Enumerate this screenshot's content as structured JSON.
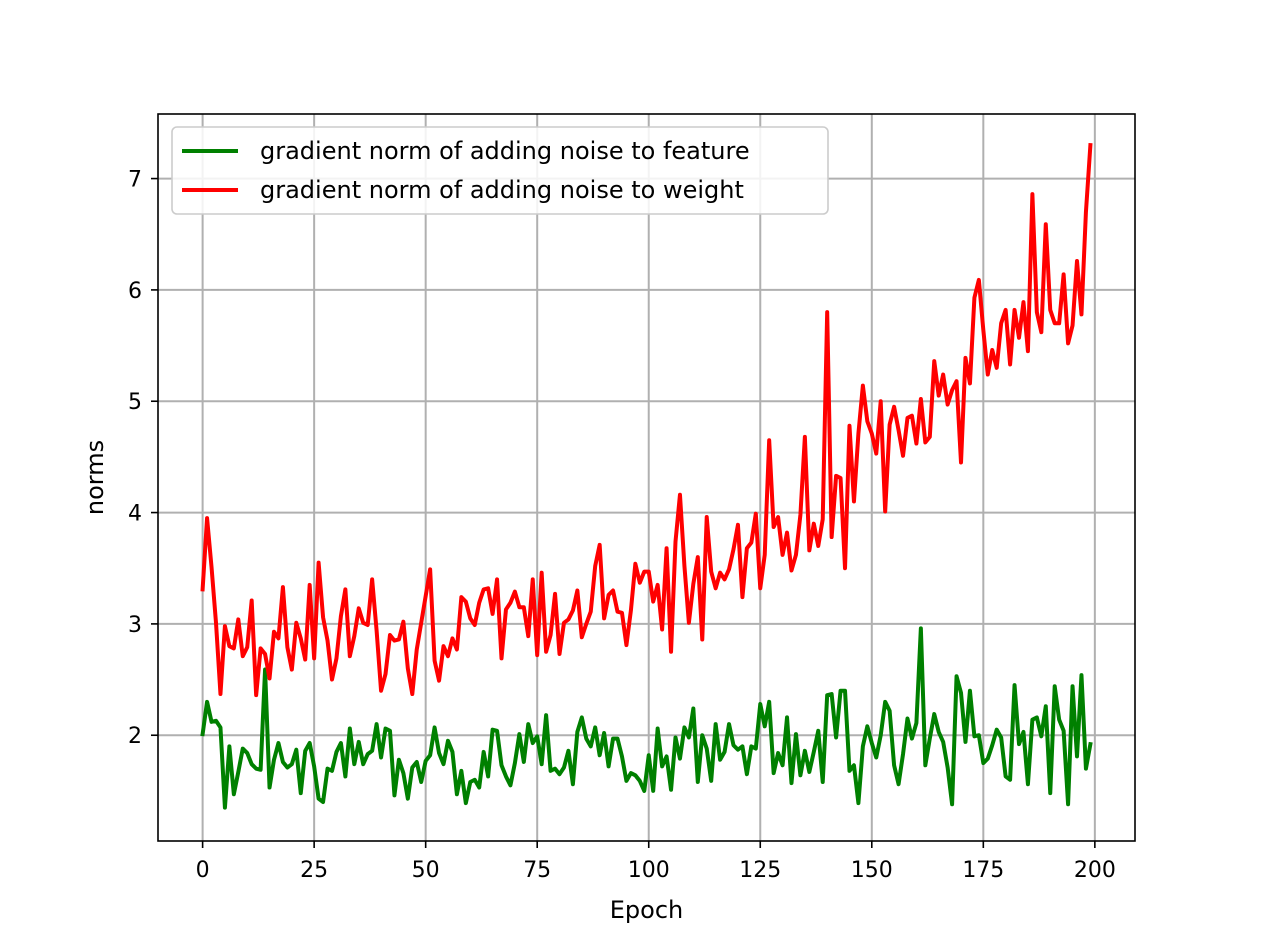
{
  "chart_data": {
    "type": "line",
    "title": "",
    "xlabel": "Epoch",
    "ylabel": "norms",
    "xlim": [
      -10,
      209
    ],
    "ylim": [
      1.05,
      7.58
    ],
    "xticks": [
      0,
      25,
      50,
      75,
      100,
      125,
      150,
      175,
      200
    ],
    "yticks": [
      2,
      3,
      4,
      5,
      6,
      7
    ],
    "grid": true,
    "legend_position": "upper-left",
    "series": [
      {
        "name": "gradient norm of adding noise to feature",
        "color": "#008000",
        "values": [
          2.01,
          2.3,
          2.12,
          2.13,
          2.07,
          1.35,
          1.9,
          1.47,
          1.67,
          1.88,
          1.84,
          1.74,
          1.7,
          1.69,
          2.59,
          1.53,
          1.78,
          1.93,
          1.76,
          1.71,
          1.74,
          1.87,
          1.48,
          1.86,
          1.93,
          1.72,
          1.43,
          1.4,
          1.7,
          1.68,
          1.85,
          1.93,
          1.63,
          2.06,
          1.74,
          1.94,
          1.74,
          1.83,
          1.86,
          2.1,
          1.8,
          2.06,
          2.04,
          1.46,
          1.78,
          1.66,
          1.43,
          1.71,
          1.76,
          1.58,
          1.77,
          1.82,
          2.07,
          1.84,
          1.74,
          1.95,
          1.85,
          1.47,
          1.68,
          1.39,
          1.58,
          1.6,
          1.53,
          1.85,
          1.63,
          2.05,
          2.04,
          1.73,
          1.63,
          1.55,
          1.75,
          2.01,
          1.76,
          2.1,
          1.93,
          1.99,
          1.74,
          2.18,
          1.68,
          1.7,
          1.65,
          1.71,
          1.86,
          1.56,
          2.03,
          2.16,
          1.97,
          1.9,
          2.07,
          1.82,
          2.02,
          1.72,
          1.97,
          1.97,
          1.81,
          1.59,
          1.66,
          1.64,
          1.59,
          1.5,
          1.82,
          1.5,
          2.06,
          1.72,
          1.81,
          1.51,
          1.98,
          1.79,
          2.07,
          1.98,
          2.24,
          1.58,
          2.0,
          1.88,
          1.59,
          2.1,
          1.78,
          1.85,
          2.1,
          1.91,
          1.87,
          1.9,
          1.65,
          1.9,
          1.88,
          2.28,
          2.08,
          2.3,
          1.66,
          1.84,
          1.73,
          2.16,
          1.57,
          2.01,
          1.64,
          1.86,
          1.67,
          1.85,
          2.04,
          1.58,
          2.36,
          2.37,
          1.98,
          2.4,
          2.4,
          1.68,
          1.73,
          1.39,
          1.9,
          2.08,
          1.93,
          1.8,
          2.0,
          2.3,
          2.22,
          1.73,
          1.56,
          1.83,
          2.15,
          1.97,
          2.11,
          2.96,
          1.73,
          1.97,
          2.19,
          2.03,
          1.94,
          1.71,
          1.38,
          2.53,
          2.38,
          1.94,
          2.4,
          1.99,
          2.0,
          1.75,
          1.79,
          1.91,
          2.05,
          1.98,
          1.63,
          1.6,
          2.45,
          1.92,
          2.03,
          1.56,
          2.14,
          2.16,
          1.99,
          2.26,
          1.48,
          2.44,
          2.14,
          2.04,
          1.38,
          2.44,
          1.81,
          2.54,
          1.7,
          1.92
        ]
      },
      {
        "name": "gradient norm of adding noise to weight",
        "color": "#ff0000",
        "values": [
          3.31,
          3.95,
          3.51,
          3.01,
          2.37,
          2.98,
          2.8,
          2.78,
          3.04,
          2.71,
          2.79,
          3.21,
          2.36,
          2.78,
          2.73,
          2.51,
          2.93,
          2.87,
          3.33,
          2.79,
          2.59,
          3.01,
          2.87,
          2.68,
          3.35,
          2.69,
          3.55,
          3.06,
          2.85,
          2.5,
          2.69,
          3.07,
          3.31,
          2.71,
          2.89,
          3.14,
          3.01,
          2.99,
          3.4,
          2.94,
          2.4,
          2.55,
          2.9,
          2.85,
          2.86,
          3.02,
          2.6,
          2.37,
          2.77,
          3.01,
          3.25,
          3.49,
          2.67,
          2.49,
          2.8,
          2.71,
          2.87,
          2.77,
          3.24,
          3.2,
          3.05,
          2.99,
          3.19,
          3.31,
          3.32,
          3.09,
          3.4,
          2.69,
          3.13,
          3.19,
          3.29,
          3.15,
          3.15,
          2.89,
          3.4,
          2.72,
          3.46,
          2.75,
          2.9,
          3.27,
          2.73,
          3.01,
          3.04,
          3.12,
          3.3,
          2.88,
          3.0,
          3.11,
          3.52,
          3.71,
          3.05,
          3.26,
          3.3,
          3.11,
          3.1,
          2.81,
          3.12,
          3.54,
          3.37,
          3.47,
          3.47,
          3.2,
          3.35,
          2.95,
          3.68,
          2.75,
          3.74,
          4.16,
          3.52,
          3.01,
          3.36,
          3.6,
          2.86,
          3.96,
          3.47,
          3.32,
          3.46,
          3.4,
          3.49,
          3.67,
          3.89,
          3.24,
          3.68,
          3.73,
          3.99,
          3.32,
          3.62,
          4.65,
          3.87,
          3.96,
          3.62,
          3.82,
          3.48,
          3.62,
          3.98,
          4.68,
          3.66,
          3.9,
          3.7,
          3.94,
          5.8,
          3.78,
          4.33,
          4.31,
          3.5,
          4.78,
          4.1,
          4.71,
          5.14,
          4.82,
          4.71,
          4.53,
          5.0,
          4.01,
          4.79,
          4.95,
          4.74,
          4.51,
          4.85,
          4.87,
          4.62,
          5.02,
          4.63,
          4.68,
          5.36,
          5.05,
          5.24,
          4.97,
          5.1,
          5.18,
          4.45,
          5.39,
          5.16,
          5.93,
          6.09,
          5.64,
          5.24,
          5.46,
          5.3,
          5.7,
          5.82,
          5.33,
          5.82,
          5.57,
          5.89,
          5.45,
          6.86,
          5.8,
          5.62,
          6.59,
          5.82,
          5.7,
          5.7,
          6.14,
          5.52,
          5.68,
          6.26,
          5.78,
          6.7,
          7.3
        ]
      }
    ]
  }
}
